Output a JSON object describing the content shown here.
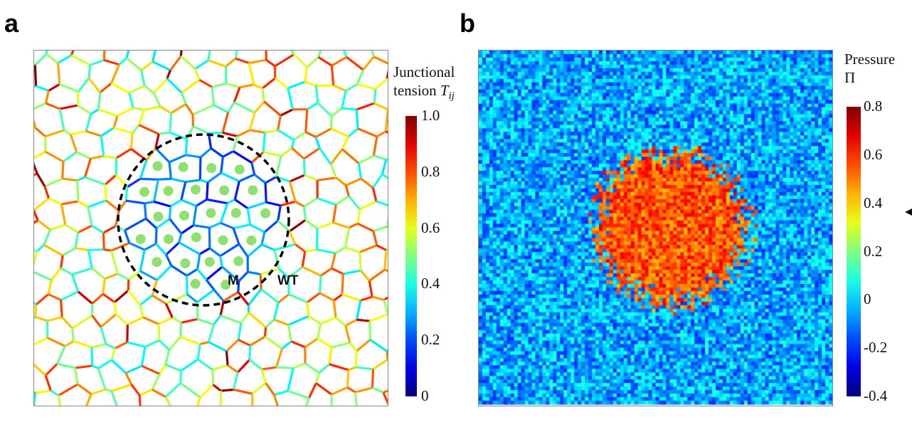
{
  "panels": {
    "a": "a",
    "b": "b"
  },
  "chart_data": [
    {
      "type": "diagram",
      "panel": "a",
      "colorbar": {
        "title_line1": "Junctional",
        "title_line2": "tension ",
        "title_symbol": "T",
        "title_sub": "ij",
        "range": [
          0,
          1.0
        ],
        "ticks": [
          "1.0",
          "0.8",
          "0.6",
          "0.4",
          "0.2",
          "0"
        ],
        "colormap": "jet"
      },
      "annotations": {
        "inner": "M",
        "outer": "WT"
      },
      "colors": {
        "dots": "#90e070",
        "circle": "#000000"
      }
    },
    {
      "type": "heatmap",
      "panel": "b",
      "colorbar": {
        "title_line1": "Pressure",
        "title_line2": "Π",
        "range": [
          -0.4,
          0.8
        ],
        "ticks": [
          "0.8",
          "0.6",
          "0.4",
          "0.2",
          "0",
          "-0.2",
          "-0.4"
        ],
        "colormap": "jet"
      }
    }
  ]
}
